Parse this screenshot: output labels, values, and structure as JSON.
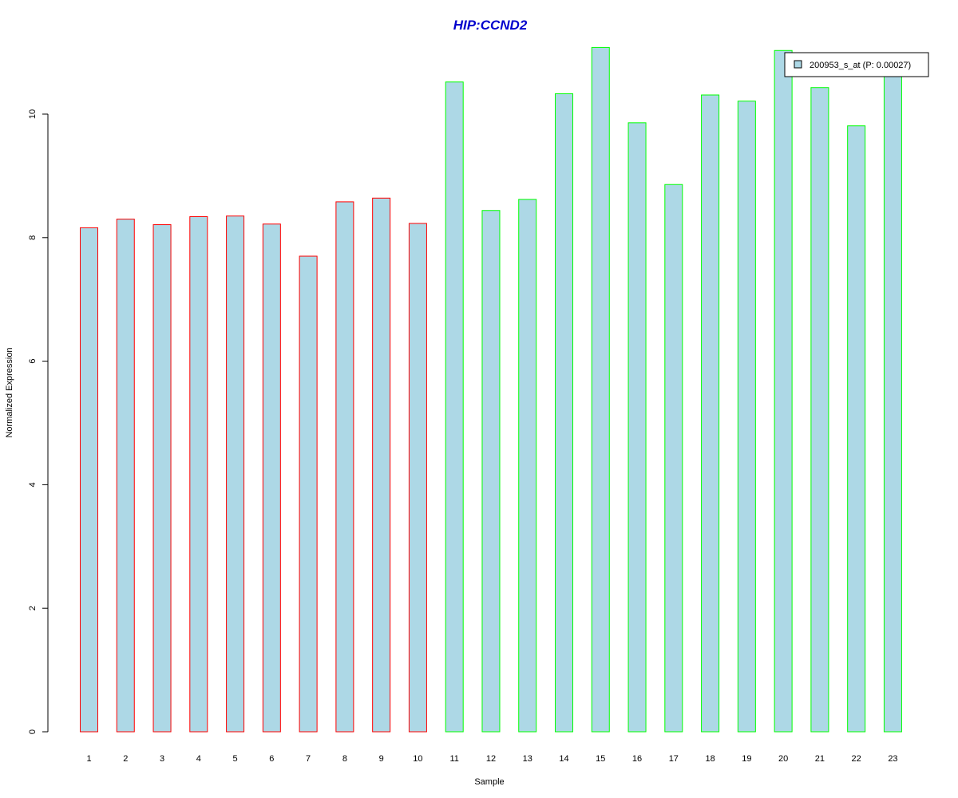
{
  "chart_data": {
    "type": "bar",
    "title": "HIP:CCND2",
    "xlabel": "Sample",
    "ylabel": "Normalized Expression",
    "categories": [
      "1",
      "2",
      "3",
      "4",
      "5",
      "6",
      "7",
      "8",
      "9",
      "10",
      "11",
      "12",
      "13",
      "14",
      "15",
      "16",
      "17",
      "18",
      "19",
      "20",
      "21",
      "22",
      "23"
    ],
    "series": [
      {
        "name": "200953_s_at (P: 0.00027)",
        "values": [
          8.16,
          8.3,
          8.21,
          8.34,
          8.35,
          8.22,
          7.7,
          8.58,
          8.64,
          8.23,
          10.52,
          8.44,
          8.62,
          10.33,
          11.08,
          9.86,
          8.86,
          10.31,
          10.21,
          11.03,
          10.43,
          9.81,
          10.63
        ],
        "groups": [
          1,
          1,
          1,
          1,
          1,
          1,
          1,
          1,
          1,
          1,
          2,
          2,
          2,
          2,
          2,
          2,
          2,
          2,
          2,
          2,
          2,
          2,
          2
        ]
      }
    ],
    "y_ticks": [
      "0",
      "2",
      "4",
      "6",
      "8",
      "10"
    ],
    "ylim": [
      0,
      11.4
    ],
    "grid": false,
    "legend_position": "top-right",
    "colors": {
      "fill": "#add8e6",
      "group1_border": "#ff0000",
      "group2_border": "#00ff00",
      "title": "#0000cd"
    }
  }
}
